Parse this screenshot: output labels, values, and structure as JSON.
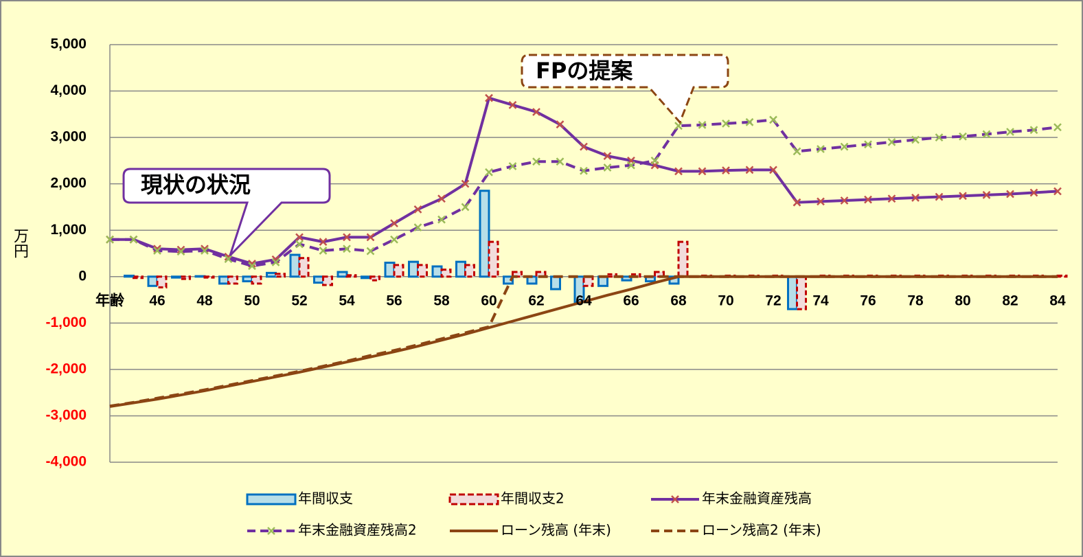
{
  "chart_data": {
    "type": "bar_line",
    "y_axis_label": "万円",
    "categories": [
      "年齢",
      null,
      46,
      null,
      48,
      null,
      50,
      null,
      52,
      null,
      54,
      null,
      56,
      null,
      58,
      null,
      60,
      null,
      62,
      null,
      64,
      null,
      66,
      null,
      68,
      null,
      70,
      null,
      72,
      null,
      74,
      null,
      76,
      null,
      78,
      null,
      80,
      null,
      82,
      null,
      84
    ],
    "ylim": [
      -4000,
      5000
    ],
    "yticks": [
      {
        "value": -4000,
        "label": "-4,000"
      },
      {
        "value": -3000,
        "label": "-3,000"
      },
      {
        "value": -2000,
        "label": "-2,000"
      },
      {
        "value": -1000,
        "label": "-1,000"
      },
      0,
      {
        "value": 1000,
        "label": "1,000"
      },
      {
        "value": 2000,
        "label": "2,000"
      },
      {
        "value": 3000,
        "label": "3,000"
      },
      {
        "value": 4000,
        "label": "4,000"
      },
      {
        "value": 5000,
        "label": "5,000"
      }
    ],
    "grid": true,
    "negative_tick_color": "#ff0000",
    "legend": "bottom",
    "annotations": [
      "現状の状況",
      "FPの提案"
    ],
    "series": [
      {
        "name": "年間収支",
        "type": "bar",
        "color": "#0070c0",
        "fill": "#b7dee8",
        "values": [
          0,
          20,
          -200,
          -20,
          10,
          -150,
          -100,
          80,
          470,
          -130,
          100,
          -30,
          300,
          320,
          220,
          320,
          1850,
          -150,
          -150,
          -270,
          -550,
          -200,
          -80,
          -100,
          -150,
          0,
          0,
          0,
          0,
          -700,
          0,
          0,
          0,
          0,
          0,
          0,
          0,
          0,
          0,
          0,
          0
        ]
      },
      {
        "name": "年間収支2",
        "type": "bar",
        "color": "#c00000",
        "fill": "#f2dcdb",
        "dash": true,
        "values": [
          0,
          -30,
          -230,
          -50,
          -20,
          -150,
          -150,
          60,
          400,
          -180,
          30,
          -80,
          250,
          250,
          150,
          250,
          750,
          100,
          100,
          0,
          -200,
          50,
          50,
          100,
          750,
          20,
          20,
          20,
          20,
          -700,
          20,
          20,
          20,
          20,
          20,
          20,
          20,
          20,
          20,
          20,
          20
        ]
      },
      {
        "name": "年末金融資産残高",
        "type": "line",
        "color": "#7030a0",
        "marker": "x",
        "marker_color": "#c0504d",
        "values": [
          800,
          800,
          600,
          580,
          600,
          430,
          280,
          370,
          850,
          750,
          850,
          850,
          1150,
          1450,
          1680,
          2000,
          3850,
          3700,
          3550,
          3280,
          2800,
          2600,
          2500,
          2400,
          2270,
          2270,
          2290,
          2300,
          2300,
          1600,
          1620,
          1640,
          1660,
          1680,
          1700,
          1720,
          1740,
          1760,
          1780,
          1810,
          1840
        ]
      },
      {
        "name": "年末金融資産残高2",
        "type": "line",
        "color": "#7030a0",
        "dash": true,
        "marker": "x",
        "marker_color": "#9bbb59",
        "values": [
          800,
          800,
          560,
          540,
          560,
          380,
          230,
          310,
          700,
          560,
          600,
          550,
          800,
          1060,
          1230,
          1500,
          2250,
          2380,
          2480,
          2480,
          2280,
          2350,
          2400,
          2500,
          3250,
          3270,
          3300,
          3330,
          3380,
          2700,
          2750,
          2800,
          2850,
          2900,
          2950,
          3000,
          3020,
          3070,
          3120,
          3160,
          3220
        ]
      },
      {
        "name": "ローン残高 (年末)",
        "type": "line",
        "color": "#8b4513",
        "values": [
          -2800,
          -2720,
          -2640,
          -2550,
          -2460,
          -2360,
          -2260,
          -2160,
          -2060,
          -1950,
          -1840,
          -1730,
          -1620,
          -1500,
          -1370,
          -1240,
          -1100,
          -960,
          -820,
          -680,
          -540,
          -400,
          -270,
          -130,
          0,
          0,
          0,
          0,
          0,
          0,
          0,
          0,
          0,
          0,
          0,
          0,
          0,
          0,
          0,
          0,
          0
        ]
      },
      {
        "name": "ローン残高2 (年末)",
        "type": "line",
        "color": "#8b4513",
        "dash": true,
        "values": [
          -2790,
          -2710,
          -2620,
          -2530,
          -2440,
          -2340,
          -2240,
          -2140,
          -2040,
          -1930,
          -1820,
          -1700,
          -1590,
          -1470,
          -1340,
          -1210,
          -1080,
          0,
          0,
          0,
          0,
          0,
          0,
          0,
          0,
          0,
          0,
          0,
          0,
          0,
          0,
          0,
          0,
          0,
          0,
          0,
          0,
          0,
          0,
          0,
          0
        ]
      }
    ]
  }
}
